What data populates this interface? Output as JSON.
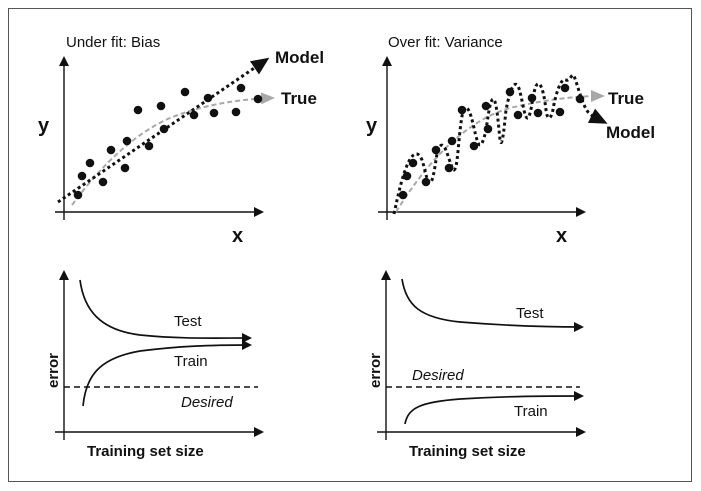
{
  "panels": {
    "underfit": {
      "title": "Under fit: Bias",
      "y_label": "y",
      "x_label": "x",
      "model_label": "Model",
      "true_label": "True"
    },
    "overfit": {
      "title": "Over fit: Variance",
      "y_label": "y",
      "x_label": "x",
      "model_label": "Model",
      "true_label": "True"
    },
    "bias_curve": {
      "y_label": "error",
      "x_label": "Training set size",
      "test_label": "Test",
      "train_label": "Train",
      "desired_label": "Desired"
    },
    "variance_curve": {
      "y_label": "error",
      "x_label": "Training set size",
      "test_label": "Test",
      "train_label": "Train",
      "desired_label": "Desired"
    }
  },
  "colors": {
    "ink": "#111111",
    "true_curve": "#a8a8a8",
    "frame": "#555555"
  }
}
